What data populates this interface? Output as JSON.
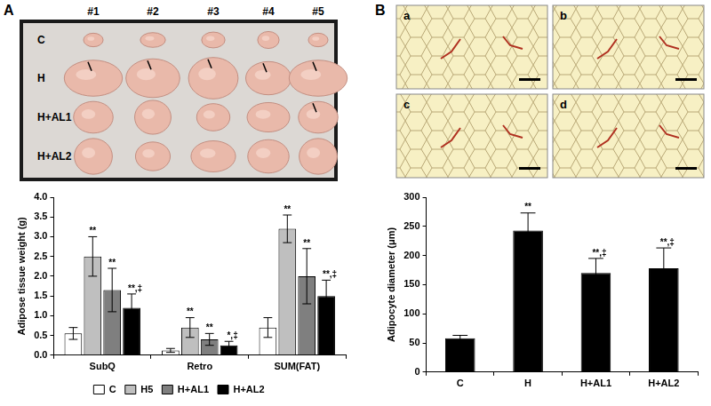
{
  "figure": {
    "panels": [
      {
        "label": "A",
        "photo": {
          "columns": [
            "#1",
            "#2",
            "#3",
            "#4",
            "#5"
          ],
          "rows": [
            "C",
            "H",
            "H+AL1",
            "H+AL2"
          ]
        }
      },
      {
        "label": "B",
        "photo": {
          "images": [
            "a",
            "b",
            "c",
            "d"
          ]
        }
      }
    ]
  },
  "chart_data": [
    {
      "type": "bar",
      "y_label": "Adipose tissue weight (g)",
      "categories": [
        "SubQ",
        "Retro",
        "SUM(FAT)"
      ],
      "series": [
        {
          "name": "C",
          "color": "#ffffff",
          "values": [
            0.55,
            0.12,
            0.7
          ],
          "errors": [
            0.15,
            0.05,
            0.25
          ],
          "annotations": [
            null,
            null,
            null
          ]
        },
        {
          "name": "H5",
          "color": "#bfbfbf",
          "values": [
            2.5,
            0.7,
            3.2
          ],
          "errors": [
            0.5,
            0.25,
            0.35
          ],
          "annotations": [
            "**",
            "**",
            "**"
          ]
        },
        {
          "name": "H+AL1",
          "color": "#7f7f7f",
          "values": [
            1.65,
            0.4,
            2.0
          ],
          "errors": [
            0.55,
            0.15,
            0.7
          ],
          "annotations": [
            "**",
            "**",
            "**"
          ]
        },
        {
          "name": "H+AL2",
          "color": "#000000",
          "values": [
            1.2,
            0.25,
            1.5
          ],
          "errors": [
            0.35,
            0.1,
            0.4
          ],
          "annotations": [
            "**,‡",
            "*,‡",
            "**,‡"
          ]
        }
      ],
      "ylim": [
        0,
        4
      ],
      "yticks": [
        {
          "value": 0,
          "label": "0.0"
        },
        0.5,
        {
          "value": 1,
          "label": "1.0"
        },
        1.5,
        {
          "value": 2,
          "label": "2.0"
        },
        2.5,
        {
          "value": 3,
          "label": "3.0"
        },
        3.5,
        {
          "value": 4,
          "label": "4.0"
        }
      ],
      "grid": false,
      "legend": "bottom"
    },
    {
      "type": "bar",
      "y_label": "Adipocyte diameter (μm)",
      "categories": [
        "C",
        "H",
        "H+AL1",
        "H+AL2"
      ],
      "values": [
        58,
        243,
        170,
        178
      ],
      "errors": [
        5,
        30,
        25,
        35
      ],
      "annotations": [
        null,
        "**",
        "**,‡",
        "**,‡"
      ],
      "color": "#000000",
      "ylim": [
        0,
        300
      ],
      "yticks": [
        0,
        50,
        100,
        150,
        200,
        250,
        300
      ],
      "grid": false
    }
  ]
}
